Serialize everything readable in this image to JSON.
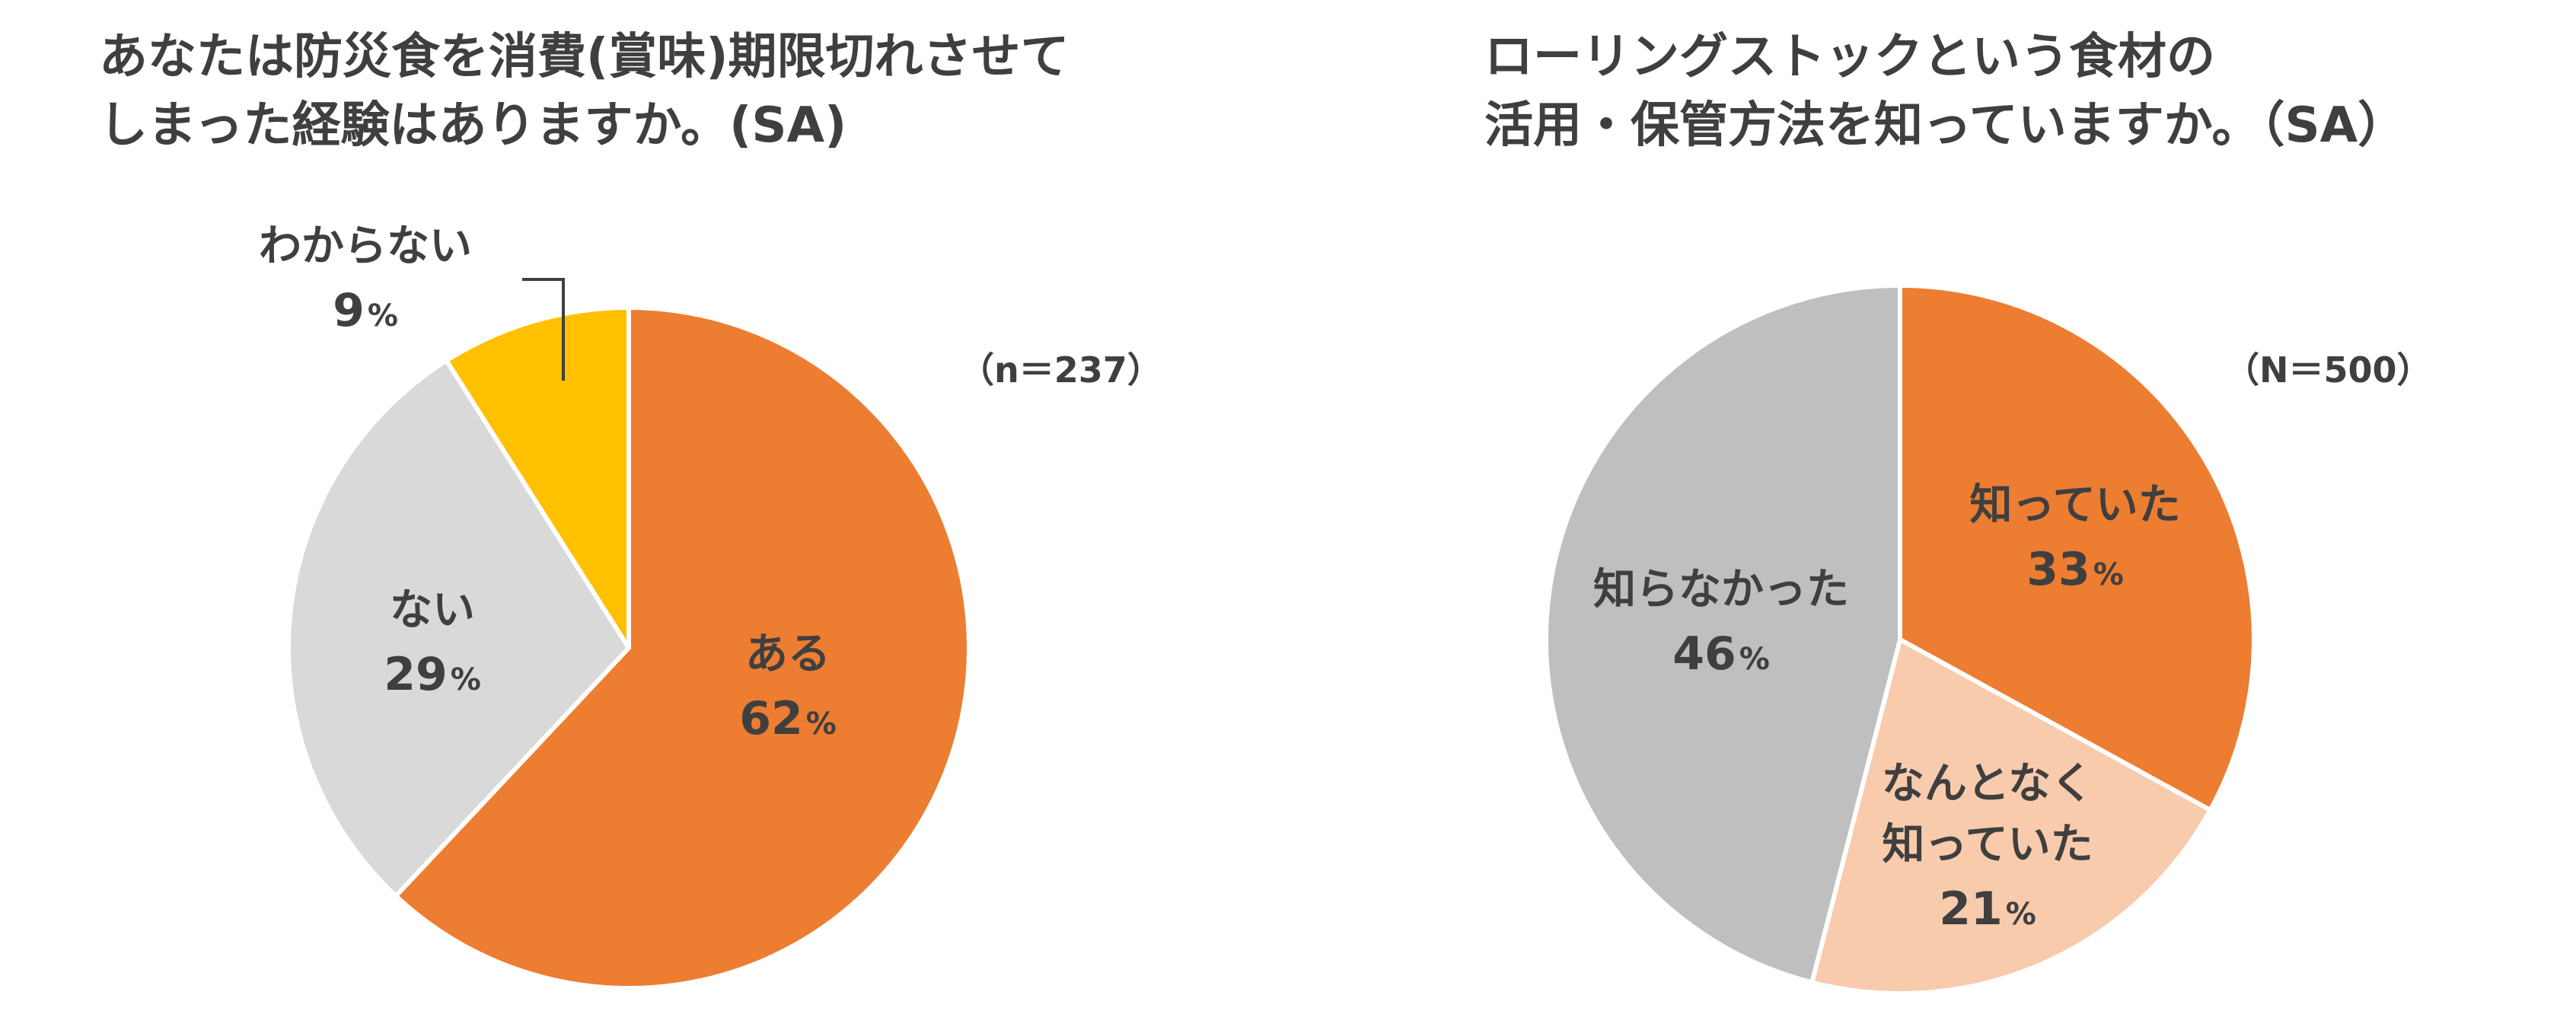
{
  "chart_data": [
    {
      "type": "pie",
      "title_lines": [
        "あなたは防災食を消費(賞味)期限切れさせて",
        "しまった経験はありますか。(SA)"
      ],
      "sample_size": "（n＝237）",
      "slices": [
        {
          "label": "ある",
          "value": 62,
          "pct_text": "62",
          "color": "#ed7d31"
        },
        {
          "label": "ない",
          "value": 29,
          "pct_text": "29",
          "color": "#d9d9d9"
        },
        {
          "label": "わからない",
          "value": 9,
          "pct_text": "9",
          "color": "#ffc000"
        }
      ],
      "percent_sign": "%",
      "start": "12 o'clock",
      "direction": "clockwise"
    },
    {
      "type": "pie",
      "title_lines": [
        "ローリングストックという食材の",
        "活用・保管方法を知っていますか。（SA）"
      ],
      "sample_size": "（N＝500）",
      "slices": [
        {
          "label_lines": [
            "知っていた"
          ],
          "value": 33,
          "pct_text": "33",
          "color": "#ed7d31"
        },
        {
          "label_lines": [
            "なんとなく",
            "知っていた"
          ],
          "value": 21,
          "pct_text": "21",
          "color": "#f8cbad"
        },
        {
          "label_lines": [
            "知らなかった"
          ],
          "value": 46,
          "pct_text": "46",
          "color": "#bfbfbf"
        }
      ],
      "percent_sign": "%",
      "start": "12 o'clock",
      "direction": "clockwise"
    }
  ]
}
